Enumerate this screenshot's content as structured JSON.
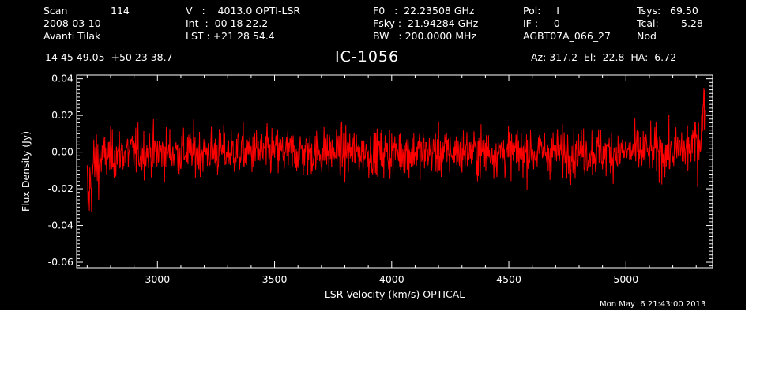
{
  "header": {
    "scan_label": "Scan",
    "scan_number": "114",
    "date": "2008-03-10",
    "observer": "Avanti Tilak",
    "velocity": "V   :    4013.0 OPTI-LSR",
    "integration": "Int  :  00 18 22.2",
    "lst": "LST : +21 28 54.4",
    "f0": "F0   :  22.23508 GHz",
    "fsky": "Fsky :  21.94284 GHz",
    "bw": "BW   : 200.0000 MHz",
    "pol": "Pol:     I",
    "if": "IF :     0",
    "project": "AGBT07A_066_27",
    "tsys_label": "Tsys:",
    "tsys_value": "69.50",
    "tcal_label": "Tcal:",
    "tcal_value": "5.28",
    "mode": "Nod",
    "coords": "14 45 49.05  +50 23 38.7",
    "pointing": "Az: 317.2  El:  22.8  HA:  6.72"
  },
  "footer": {
    "timestamp": "Mon May  6 21:43:00 2013"
  },
  "chart_data": {
    "type": "line",
    "title": "IC-1056",
    "xlabel": "LSR Velocity (km/s) OPTICAL",
    "ylabel": "Flux Density (Jy)",
    "xlim": [
      2655,
      5370
    ],
    "ylim": [
      -0.063,
      0.042
    ],
    "xticks": [
      3000,
      3500,
      4000,
      4500,
      5000
    ],
    "xtick_labels": [
      "3000",
      "3500",
      "4000",
      "4500",
      "5000"
    ],
    "yticks": [
      -0.06,
      -0.04,
      -0.02,
      0.0,
      0.02,
      0.04
    ],
    "ytick_labels": [
      "-0.06",
      "-0.04",
      "-0.02",
      "0.00",
      "0.02",
      "0.04"
    ],
    "grid": false,
    "series": [
      {
        "color": "#ff0000",
        "noise_rms": 0.0065,
        "x_start": 2700,
        "x_end": 5340,
        "n_points": 1400,
        "anchor_x": [
          2700,
          2705,
          2712,
          2722,
          2740,
          2770,
          2850,
          3000,
          4000,
          5000,
          5200,
          5260,
          5300,
          5320,
          5330,
          5340
        ],
        "anchor_y": [
          -0.021,
          -0.03,
          -0.018,
          -0.01,
          -0.006,
          -0.003,
          0.0,
          0.0,
          0.0,
          0.0,
          0.0,
          0.002,
          0.005,
          0.01,
          0.02,
          0.028
        ]
      }
    ]
  }
}
